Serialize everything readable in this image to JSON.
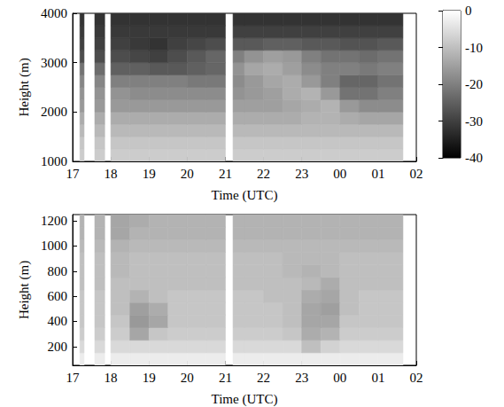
{
  "chart_data": [
    {
      "type": "heatmap",
      "xlabel": "Time (UTC)",
      "ylabel": "Height (m)",
      "xlim": [
        17,
        26
      ],
      "xticks": [
        17,
        18,
        19,
        20,
        21,
        22,
        23,
        {
          "value": 24,
          "label": "00"
        },
        {
          "value": 25,
          "label": "01"
        },
        {
          "value": 26,
          "label": "02"
        }
      ],
      "ylim": [
        1000,
        4000
      ],
      "yticks": [
        1000,
        2000,
        3000,
        4000
      ],
      "grid": false,
      "colorbar": {
        "range": [
          -40,
          0
        ],
        "ticks": [
          0,
          -10,
          -20,
          -30,
          -40
        ]
      },
      "x_edges": [
        17.19,
        17.3,
        17.58,
        17.84,
        18.0,
        18.5,
        19.0,
        19.5,
        20.0,
        20.5,
        21.0,
        21.2,
        21.5,
        22.0,
        22.5,
        23.0,
        23.5,
        24.0,
        24.5,
        25.0,
        25.65
      ],
      "y_edges": [
        1000,
        1250,
        1500,
        1750,
        2000,
        2250,
        2500,
        2750,
        3000,
        3250,
        3500,
        3750,
        4000
      ],
      "cells": [
        [
          -8,
          null,
          -8,
          null,
          -8,
          -8,
          -8,
          -8,
          -8,
          -8,
          null,
          -8,
          -8,
          -8,
          -8,
          -8,
          -8,
          -8,
          -8,
          -8
        ],
        [
          -9,
          null,
          -9,
          null,
          -9,
          -9,
          -9,
          -9,
          -9,
          -9,
          null,
          -9,
          -9,
          -9,
          -9,
          -9,
          -9,
          -9,
          -9,
          -9
        ],
        [
          -11,
          null,
          -11,
          null,
          -11,
          -11,
          -11,
          -11,
          -11,
          -11,
          null,
          -11,
          -11,
          -11,
          -11,
          -11,
          -11,
          -11,
          -11,
          -11
        ],
        [
          -13,
          null,
          -13,
          null,
          -13,
          -13,
          -13,
          -13,
          -13,
          -13,
          null,
          -13,
          -13,
          -13,
          -13,
          -12,
          -12,
          -13,
          -14,
          -14
        ],
        [
          -16,
          null,
          -16,
          null,
          -16,
          -16,
          -16,
          -16,
          -16,
          -16,
          null,
          -15,
          -15,
          -15,
          -14,
          -13,
          -12,
          -16,
          -18,
          -18
        ],
        [
          -17,
          null,
          -17,
          null,
          -17,
          -18,
          -18,
          -18,
          -18,
          -18,
          null,
          -17,
          -16,
          -15,
          -13,
          -12,
          -16,
          -22,
          -22,
          -20
        ],
        [
          -19,
          null,
          -19,
          null,
          -20,
          -20,
          -20,
          -20,
          -21,
          -21,
          null,
          -18,
          -16,
          -14,
          -13,
          -16,
          -20,
          -24,
          -24,
          -22
        ],
        [
          -22,
          null,
          -23,
          null,
          -25,
          -25,
          -26,
          -26,
          -25,
          -24,
          null,
          -17,
          -14,
          -13,
          -15,
          -18,
          -20,
          -20,
          -21,
          -20
        ],
        [
          -28,
          null,
          -28,
          null,
          -28,
          -29,
          -30,
          -28,
          -26,
          -24,
          null,
          -20,
          -17,
          -15,
          -16,
          -20,
          -22,
          -22,
          -23,
          -22
        ],
        [
          -30,
          null,
          -30,
          null,
          -30,
          -31,
          -32,
          -30,
          -29,
          -28,
          null,
          -26,
          -26,
          -25,
          -25,
          -26,
          -26,
          -27,
          -27,
          -26
        ],
        [
          -31,
          null,
          -31,
          null,
          -31,
          -31,
          -31,
          -31,
          -31,
          -31,
          null,
          -30,
          -30,
          -30,
          -30,
          -30,
          -30,
          -30,
          -30,
          -30
        ],
        [
          -32,
          null,
          -32,
          null,
          -32,
          -32,
          -32,
          -32,
          -32,
          -32,
          null,
          -32,
          -32,
          -32,
          -32,
          -32,
          -32,
          -32,
          -32,
          -32
        ]
      ]
    },
    {
      "type": "heatmap",
      "xlabel": "Time (UTC)",
      "ylabel": "Height (m)",
      "xlim": [
        17,
        26
      ],
      "xticks": [
        17,
        18,
        19,
        20,
        21,
        22,
        23,
        {
          "value": 24,
          "label": "00"
        },
        {
          "value": 25,
          "label": "01"
        },
        {
          "value": 26,
          "label": "02"
        }
      ],
      "ylim": [
        50,
        1250
      ],
      "yticks": [
        200,
        400,
        600,
        800,
        1000,
        1200
      ],
      "grid": false,
      "x_edges": [
        17.19,
        17.3,
        17.58,
        17.84,
        18.0,
        18.5,
        19.0,
        19.5,
        20.0,
        20.5,
        21.0,
        21.2,
        21.5,
        22.0,
        22.5,
        23.0,
        23.5,
        24.0,
        24.5,
        25.0,
        25.65
      ],
      "y_edges": [
        50,
        150,
        250,
        350,
        450,
        550,
        650,
        750,
        850,
        950,
        1050,
        1150,
        1250
      ],
      "cells": [
        [
          -3,
          null,
          -3,
          null,
          -3,
          -3,
          -3,
          -3,
          -3,
          -3,
          null,
          -3,
          -3,
          -3,
          -3,
          -3,
          -3,
          -3,
          -3,
          -3
        ],
        [
          -6,
          null,
          -6,
          null,
          -6,
          -6,
          -6,
          -6,
          -6,
          -6,
          null,
          -6,
          -6,
          -6,
          -6,
          -10,
          -7,
          -6,
          -6,
          -6
        ],
        [
          -8,
          null,
          -8,
          null,
          -8,
          -14,
          -9,
          -8,
          -8,
          -8,
          null,
          -8,
          -8,
          -8,
          -9,
          -13,
          -12,
          -8,
          -8,
          -8
        ],
        [
          -9,
          null,
          -9,
          null,
          -9,
          -16,
          -14,
          -9,
          -9,
          -9,
          null,
          -9,
          -9,
          -9,
          -10,
          -14,
          -14,
          -9,
          -9,
          -9
        ],
        [
          -9,
          null,
          -9,
          null,
          -10,
          -15,
          -13,
          -9,
          -9,
          -9,
          null,
          -9,
          -9,
          -9,
          -10,
          -14,
          -15,
          -10,
          -9,
          -9
        ],
        [
          -9,
          null,
          -9,
          null,
          -10,
          -12,
          -10,
          -9,
          -9,
          -9,
          null,
          -9,
          -9,
          -10,
          -10,
          -13,
          -14,
          -10,
          -9,
          -9
        ],
        [
          -10,
          null,
          -10,
          null,
          -10,
          -10,
          -10,
          -10,
          -10,
          -10,
          null,
          -10,
          -10,
          -10,
          -10,
          -11,
          -13,
          -10,
          -10,
          -10
        ],
        [
          -10,
          null,
          -10,
          null,
          -11,
          -10,
          -10,
          -10,
          -10,
          -10,
          null,
          -10,
          -10,
          -10,
          -11,
          -12,
          -11,
          -10,
          -10,
          -10
        ],
        [
          -10,
          null,
          -10,
          null,
          -11,
          -10,
          -10,
          -10,
          -10,
          -10,
          null,
          -10,
          -10,
          -10,
          -11,
          -11,
          -11,
          -10,
          -10,
          -10
        ],
        [
          -11,
          null,
          -11,
          null,
          -12,
          -11,
          -11,
          -11,
          -11,
          -11,
          null,
          -11,
          -11,
          -11,
          -11,
          -11,
          -11,
          -11,
          -11,
          -11
        ],
        [
          -12,
          null,
          -12,
          null,
          -14,
          -12,
          -12,
          -12,
          -12,
          -12,
          null,
          -12,
          -12,
          -12,
          -12,
          -12,
          -12,
          -12,
          -12,
          -12
        ],
        [
          -12,
          null,
          -12,
          null,
          -14,
          -13,
          -12,
          -12,
          -12,
          -12,
          null,
          -12,
          -12,
          -12,
          -12,
          -12,
          -12,
          -12,
          -12,
          -12
        ]
      ]
    }
  ]
}
